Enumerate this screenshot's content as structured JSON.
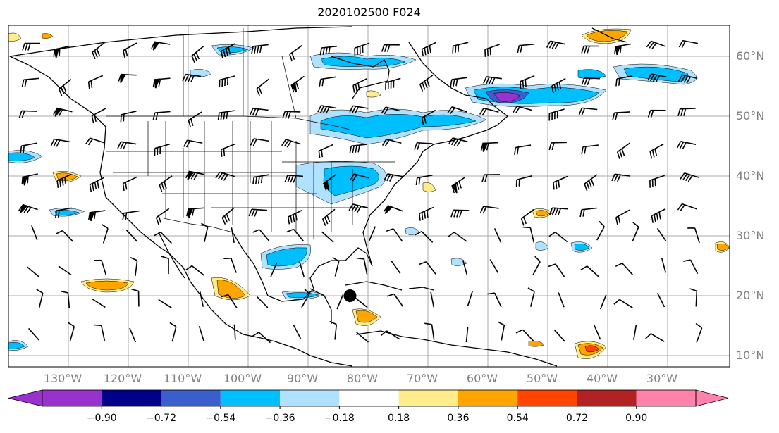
{
  "title": "2020102500 F024",
  "map": {
    "lat_labels": [
      {
        "value": 60,
        "label": "60°N"
      },
      {
        "value": 50,
        "label": "50°N"
      },
      {
        "value": 40,
        "label": "40°N"
      },
      {
        "value": 30,
        "label": "30°N"
      },
      {
        "value": 20,
        "label": "20°N"
      },
      {
        "value": 10,
        "label": "10°N"
      }
    ],
    "lon_labels": [
      {
        "value": -130,
        "label": "130°W"
      },
      {
        "value": -120,
        "label": "120°W"
      },
      {
        "value": -110,
        "label": "110°W"
      },
      {
        "value": -100,
        "label": "100°W"
      },
      {
        "value": -90,
        "label": "90°W"
      },
      {
        "value": -80,
        "label": "80°W"
      },
      {
        "value": -70,
        "label": "70°W"
      },
      {
        "value": -60,
        "label": "60°W"
      },
      {
        "value": -50,
        "label": "50°W"
      },
      {
        "value": -40,
        "label": "40°W"
      },
      {
        "value": -30,
        "label": "30°W"
      }
    ],
    "marker": {
      "lon": -83,
      "lat": 20,
      "color": "#000000"
    }
  },
  "colorbar": {
    "colors": [
      "#9932cc",
      "#00008b",
      "#3a5fcd",
      "#00bfff",
      "#b0e2ff",
      "#ffffff",
      "#ffec8b",
      "#ffa500",
      "#ff4500",
      "#b22222",
      "#ff82ab"
    ],
    "extend_min_color": "#9932cc",
    "extend_max_color": "#ff82ab",
    "ticks": [
      "−0.90",
      "−0.72",
      "−0.54",
      "−0.36",
      "−0.18",
      "0.18",
      "0.36",
      "0.54",
      "0.72",
      "0.90"
    ]
  },
  "fill_colors": {
    "light_blue": "#b0e2ff",
    "blue": "#00bfff",
    "royal": "#3a5fcd",
    "purple": "#9932cc",
    "yellow": "#ffec8b",
    "orange": "#ffa500",
    "red": "#ff4500"
  }
}
